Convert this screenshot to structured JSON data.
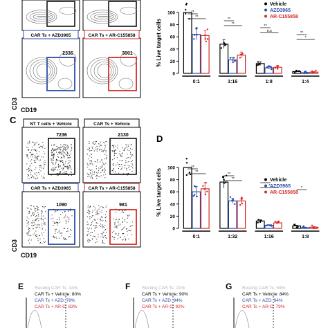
{
  "panelA": {
    "boxes": [
      {
        "label": "",
        "value": "",
        "color": "#000000"
      },
      {
        "label": "",
        "value": "",
        "color": "#000000"
      },
      {
        "label": "CAR Ts + AZD3965",
        "value": "2336",
        "color": "#2b4aa8"
      },
      {
        "label": "CAR Ts + AR-C155858",
        "value": "3001",
        "color": "#d42b2b"
      }
    ],
    "xaxis": "CD19",
    "yaxis": "CD3"
  },
  "panelB": {
    "letter": "",
    "chart_data": {
      "type": "bar",
      "ylabel": "% Live target cells",
      "ylim": [
        0,
        100
      ],
      "yticks": [
        "0",
        "20",
        "40",
        "60",
        "80",
        "100"
      ],
      "categories": [
        "0:1",
        "1:16",
        "1:8",
        "1:4"
      ],
      "series": [
        {
          "name": "Vehicle",
          "color": "#000000",
          "values": [
            100,
            48,
            16,
            3
          ]
        },
        {
          "name": "AZD3965",
          "color": "#2b4aa8",
          "values": [
            64,
            22,
            9,
            1
          ]
        },
        {
          "name": "AR-C155858",
          "color": "#d42b2b",
          "values": [
            62,
            30,
            10,
            2
          ]
        }
      ],
      "errors": [
        [
          0,
          7,
          3,
          1
        ],
        [
          9,
          4,
          2,
          1
        ],
        [
          8,
          5,
          3,
          1
        ]
      ],
      "significance": [
        "**",
        "**",
        "**",
        "**",
        "**",
        "n.s",
        "**",
        "*"
      ]
    }
  },
  "panelC": {
    "letter": "C",
    "boxes": [
      {
        "label": "NT T cells + Vehicle",
        "value": "7236",
        "color": "#000000"
      },
      {
        "label": "CAR Ts + Vehicle",
        "value": "2130",
        "color": "#000000"
      },
      {
        "label": "CAR Ts + AZD3965",
        "value": "1090",
        "color": "#2b4aa8"
      },
      {
        "label": "CAR Ts + AR-C155858",
        "value": "981",
        "color": "#d42b2b"
      }
    ],
    "xaxis": "CD19",
    "yaxis": "CD3"
  },
  "panelD": {
    "letter": "D",
    "chart_data": {
      "type": "bar",
      "ylabel": "% Live target cells",
      "ylim": [
        0,
        100
      ],
      "yticks": [
        "0",
        "20",
        "40",
        "60",
        "80",
        "100"
      ],
      "categories": [
        "0:1",
        "1:32",
        "1:16",
        "1:8"
      ],
      "series": [
        {
          "name": "Vehicle",
          "color": "#000000",
          "values": [
            100,
            76,
            12,
            4
          ]
        },
        {
          "name": "AZD3965",
          "color": "#2b4aa8",
          "values": [
            60,
            45,
            5,
            1
          ]
        },
        {
          "name": "AR-C155858",
          "color": "#d42b2b",
          "values": [
            65,
            45,
            9,
            2
          ]
        }
      ],
      "errors": [
        [
          0,
          10,
          2,
          1
        ],
        [
          9,
          4,
          1,
          1
        ],
        [
          10,
          4,
          2,
          1
        ]
      ],
      "significance": [
        "**",
        "**",
        "**",
        "**",
        "**",
        "*",
        "*"
      ]
    }
  },
  "bottom": [
    {
      "letter": "E",
      "lines": [
        {
          "text": "Resting CAR Ts:",
          "value": "34%",
          "color": "#b5b5b5"
        },
        {
          "text": "CAR Ts + Vehicle:",
          "value": "80%",
          "color": "#000000"
        },
        {
          "text": "CAR Ts + AZD:",
          "value": "78%",
          "color": "#2b4aa8"
        },
        {
          "text": "CAR Ts + AR-C:",
          "value": "83%",
          "color": "#d42b2b"
        }
      ]
    },
    {
      "letter": "F",
      "lines": [
        {
          "text": "Resting CAR Ts:",
          "value": "21%",
          "color": "#b5b5b5"
        },
        {
          "text": "CAR Ts + Vehicle:",
          "value": "90%",
          "color": "#000000"
        },
        {
          "text": "CAR Ts + AZD:",
          "value": "94%",
          "color": "#2b4aa8"
        },
        {
          "text": "CAR Ts + AR-C:",
          "value": "92%",
          "color": "#d42b2b"
        }
      ]
    },
    {
      "letter": "G",
      "lines": [
        {
          "text": "Resting CAR Ts:",
          "value": "59%",
          "color": "#b5b5b5"
        },
        {
          "text": "CAR Ts + Vehicle:",
          "value": "84%",
          "color": "#000000"
        },
        {
          "text": "CAR Ts + AZD:",
          "value": "94%",
          "color": "#2b4aa8"
        },
        {
          "text": "CAR Ts + AR-C:",
          "value": "79%",
          "color": "#d42b2b"
        }
      ]
    }
  ]
}
